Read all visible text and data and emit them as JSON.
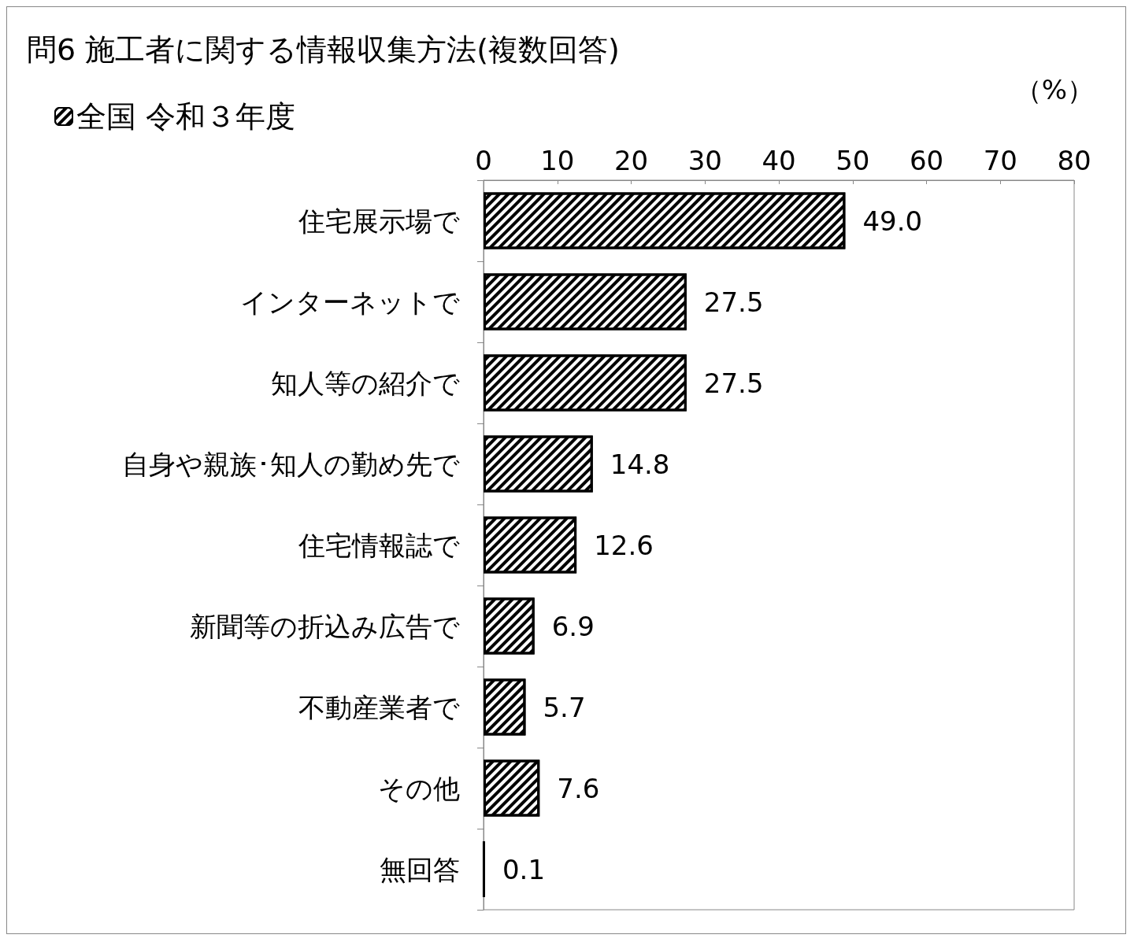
{
  "chart_data": {
    "type": "bar",
    "orientation": "horizontal",
    "title": "問6 施工者に関する情報収集方法(複数回答)",
    "xlabel": "（%）",
    "categories": [
      "住宅展示場で",
      "インターネットで",
      "知人等の紹介で",
      "自身や親族･知人の勤め先で",
      "住宅情報誌で",
      "新聞等の折込み広告で",
      "不動産業者で",
      "その他",
      "無回答"
    ],
    "series": [
      {
        "name": "全国 令和３年度",
        "color": "#000000",
        "values": [
          49.0,
          27.5,
          27.5,
          14.8,
          12.6,
          6.9,
          5.7,
          7.6,
          0.1
        ],
        "value_labels": [
          "49.0",
          "27.5",
          "27.5",
          "14.8",
          "12.6",
          "6.9",
          "5.7",
          "7.6",
          "0.1"
        ]
      }
    ],
    "xlim": [
      0,
      80
    ],
    "xticks": [
      0,
      10,
      20,
      30,
      40,
      50,
      60,
      70,
      80
    ],
    "grid": false,
    "legend": "top left"
  }
}
